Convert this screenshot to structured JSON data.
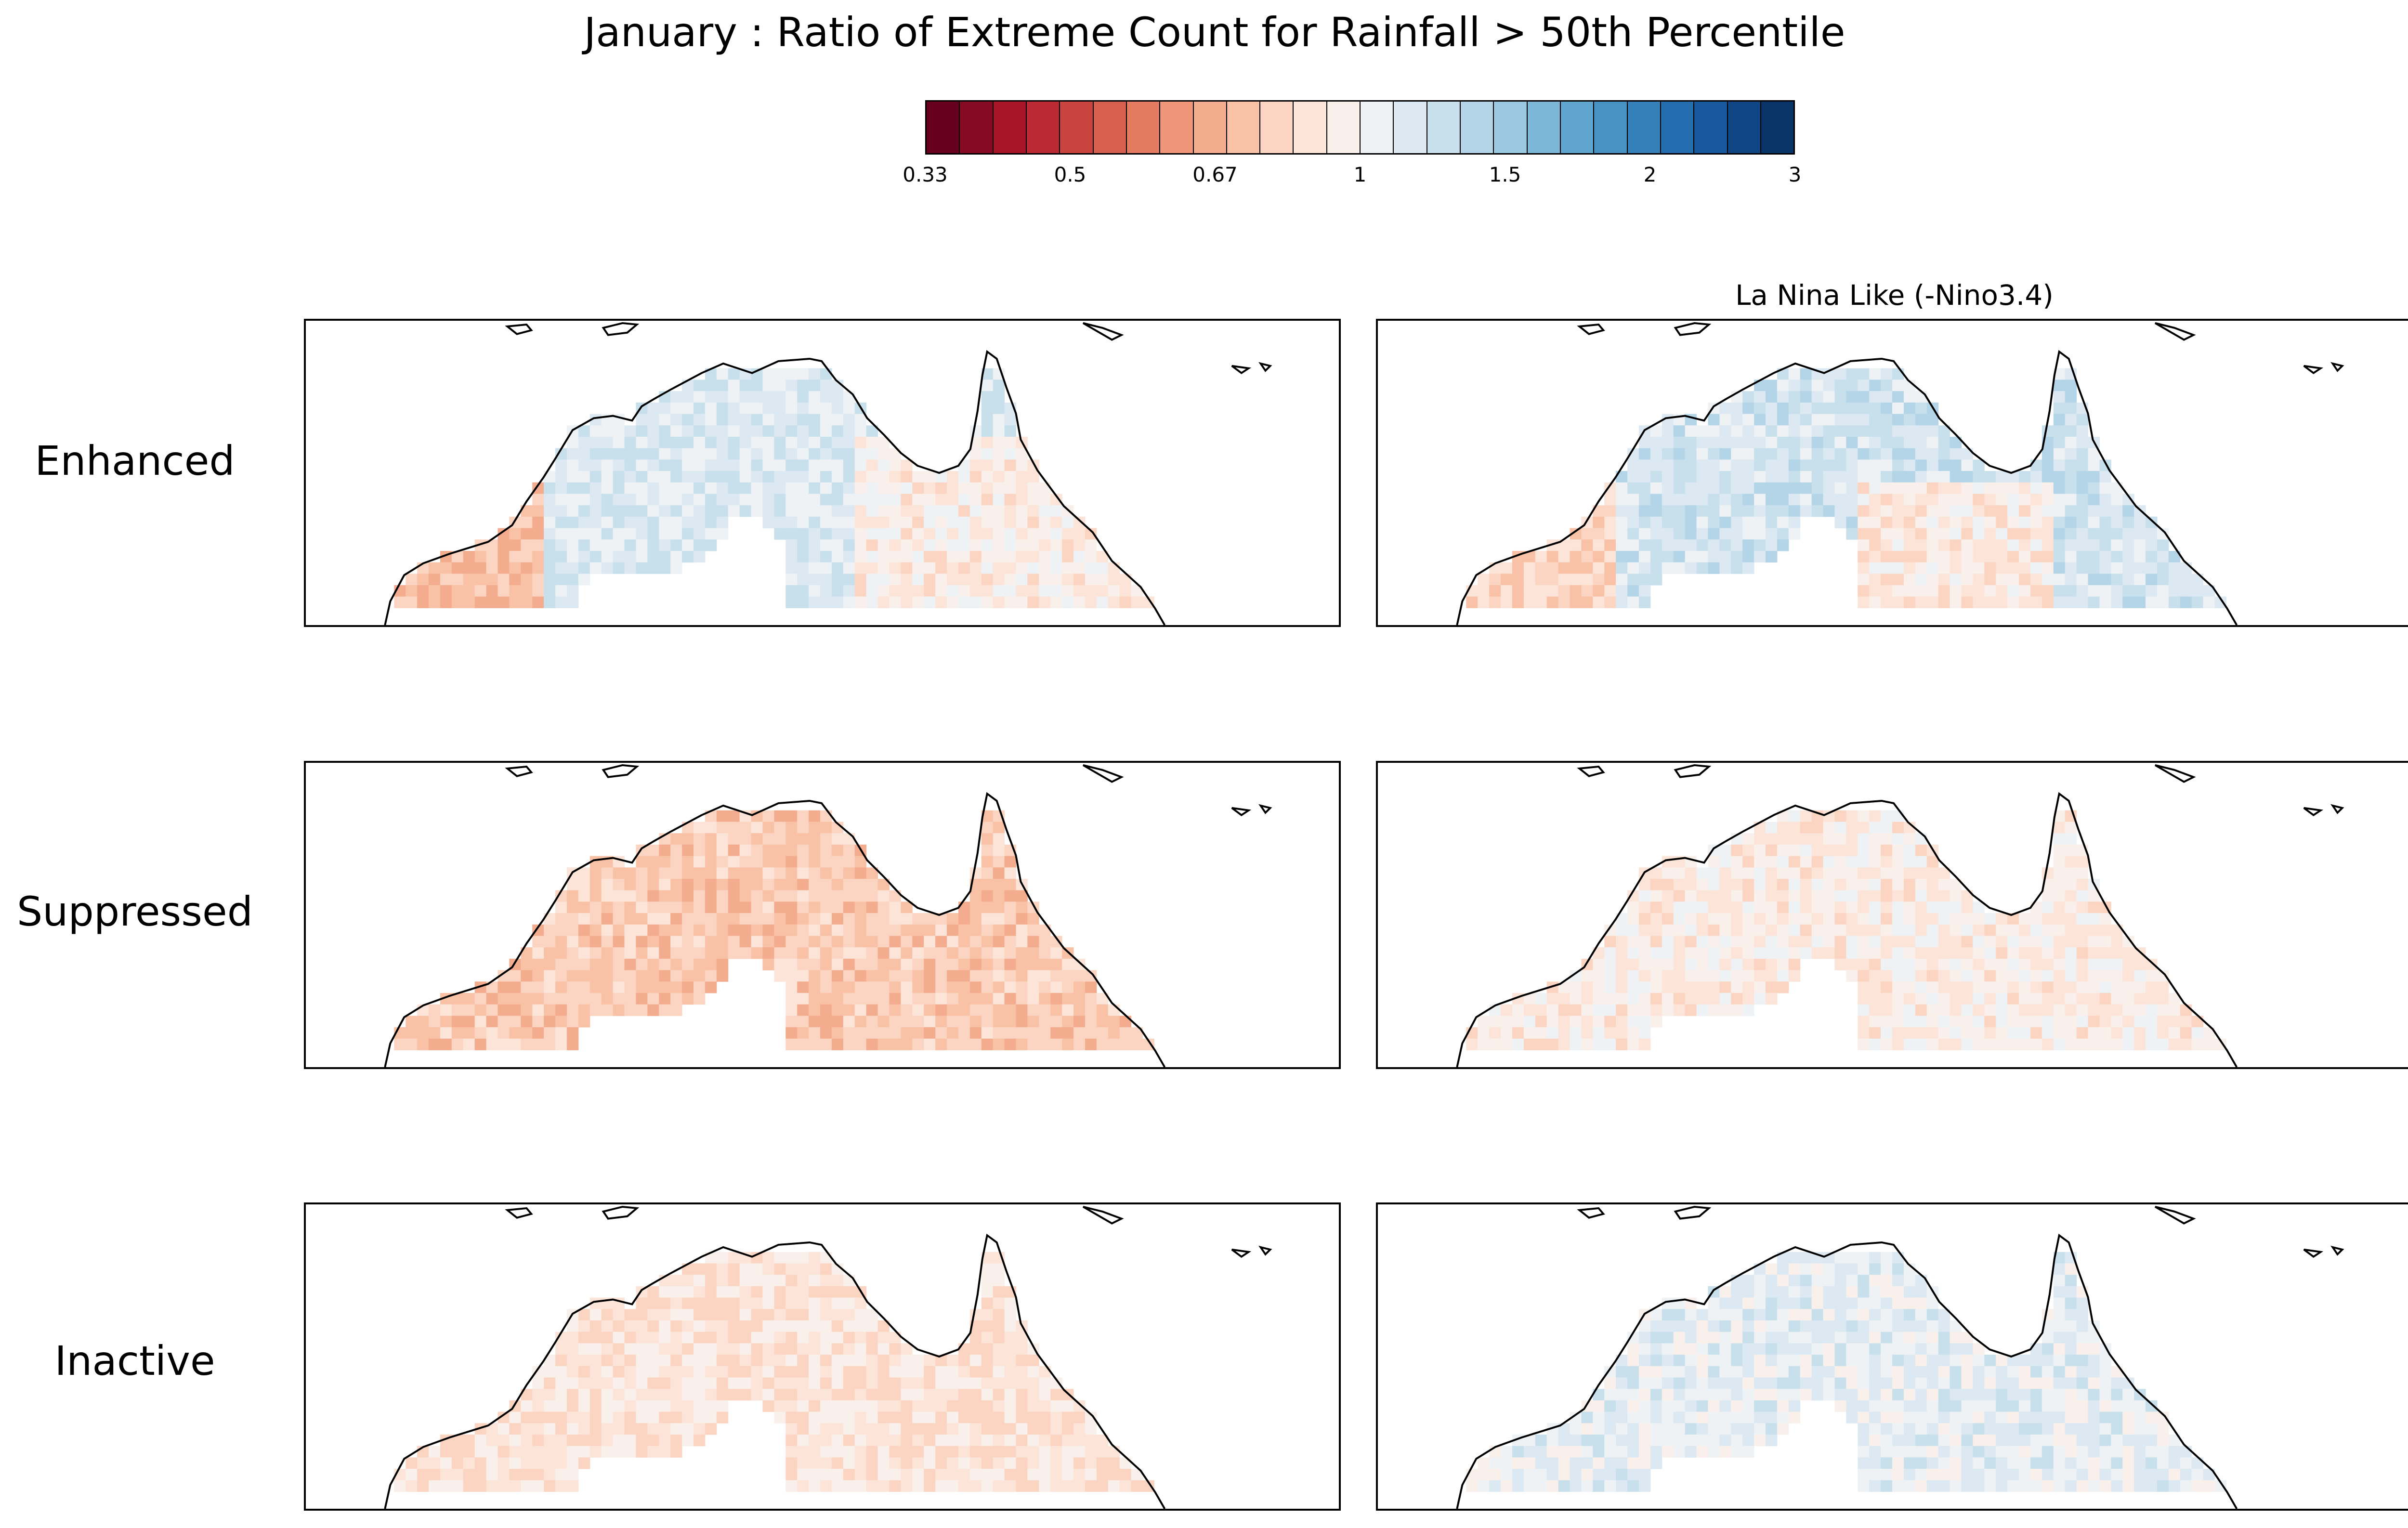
{
  "title": "January : Ratio of Extreme Count for Rainfall > 50th Percentile",
  "colorbar": {
    "ticks": [
      "0.33",
      "0.5",
      "0.67",
      "1",
      "1.5",
      "2",
      "3"
    ],
    "colors": [
      "#67001f",
      "#870a24",
      "#a81529",
      "#bb2a33",
      "#c9433f",
      "#d75f4d",
      "#e37b60",
      "#ee9677",
      "#f4ac8e",
      "#f9c2a6",
      "#fbd5c2",
      "#fce4d8",
      "#f9f0eb",
      "#eef2f5",
      "#dce9f2",
      "#c8e0ec",
      "#b3d5e7",
      "#9ac8e0",
      "#7db7d7",
      "#60a5cd",
      "#4792c2",
      "#3580b9",
      "#246eaf",
      "#17599c",
      "#0f4582",
      "#083468"
    ]
  },
  "columns": [
    {
      "title": ""
    },
    {
      "title": "La Nina Like (-Nino3.4)"
    }
  ],
  "rows": [
    {
      "label": "Enhanced"
    },
    {
      "label": "Suppressed"
    },
    {
      "label": "Inactive"
    }
  ],
  "map_data": {
    "region": "Northern Australia",
    "variable": "ratio of extreme count",
    "panel_tendencies": {
      "Enhanced": {
        "col1": "mostly > 1 (blue) east and center, < 1 (red) far west",
        "col2": "mostly > 1 (blue), red patches far west"
      },
      "Suppressed": {
        "col1": "mostly < 1 (red)",
        "col2": "near 1, slightly < 1"
      },
      "Inactive": {
        "col1": "slightly < 1 (red) west and south",
        "col2": "slightly > 1 (blue)"
      }
    }
  }
}
